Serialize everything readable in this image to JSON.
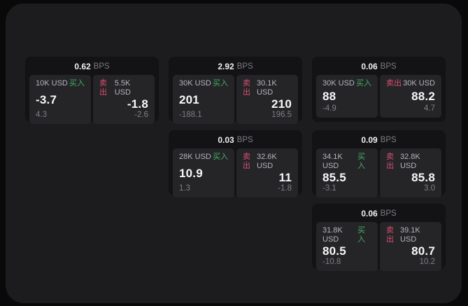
{
  "labels": {
    "bps_unit": "BPS",
    "buy": "买入",
    "sell": "卖出"
  },
  "colors": {
    "page_background": "#09090a",
    "window_background": "#1c1c1e",
    "card_background": "#131315",
    "panel_background": "#252528",
    "buy_green": "#3fae63",
    "sell_red": "#d84f6f",
    "price_text": "#f7f7f8",
    "muted_text": "#7e7e85"
  },
  "cards": [
    {
      "bps": "0.62",
      "buy": {
        "size": "10K USD",
        "price": "-3.7",
        "delta": "4.3"
      },
      "sell": {
        "size": "5.5K USD",
        "price": "-1.8",
        "delta": "-2.6"
      }
    },
    {
      "bps": "2.92",
      "buy": {
        "size": "30K USD",
        "price": "201",
        "delta": "-188.1"
      },
      "sell": {
        "size": "30.1K USD",
        "price": "210",
        "delta": "196.5"
      }
    },
    {
      "bps": "0.06",
      "buy": {
        "size": "30K USD",
        "price": "88",
        "delta": "-4.9"
      },
      "sell": {
        "size": "30K USD",
        "price": "88.2",
        "delta": "4.7"
      }
    },
    {
      "bps": "0.03",
      "buy": {
        "size": "28K USD",
        "price": "10.9",
        "delta": "1.3"
      },
      "sell": {
        "size": "32.6K USD",
        "price": "11",
        "delta": "-1.8"
      }
    },
    {
      "bps": "0.09",
      "buy": {
        "size": "34.1K USD",
        "price": "85.5",
        "delta": "-3.1"
      },
      "sell": {
        "size": "32.8K USD",
        "price": "85.8",
        "delta": "3.0"
      }
    },
    {
      "bps": "0.06",
      "buy": {
        "size": "31.8K USD",
        "price": "80.5",
        "delta": "-10.8"
      },
      "sell": {
        "size": "39.1K USD",
        "price": "80.7",
        "delta": "10.2"
      }
    }
  ]
}
